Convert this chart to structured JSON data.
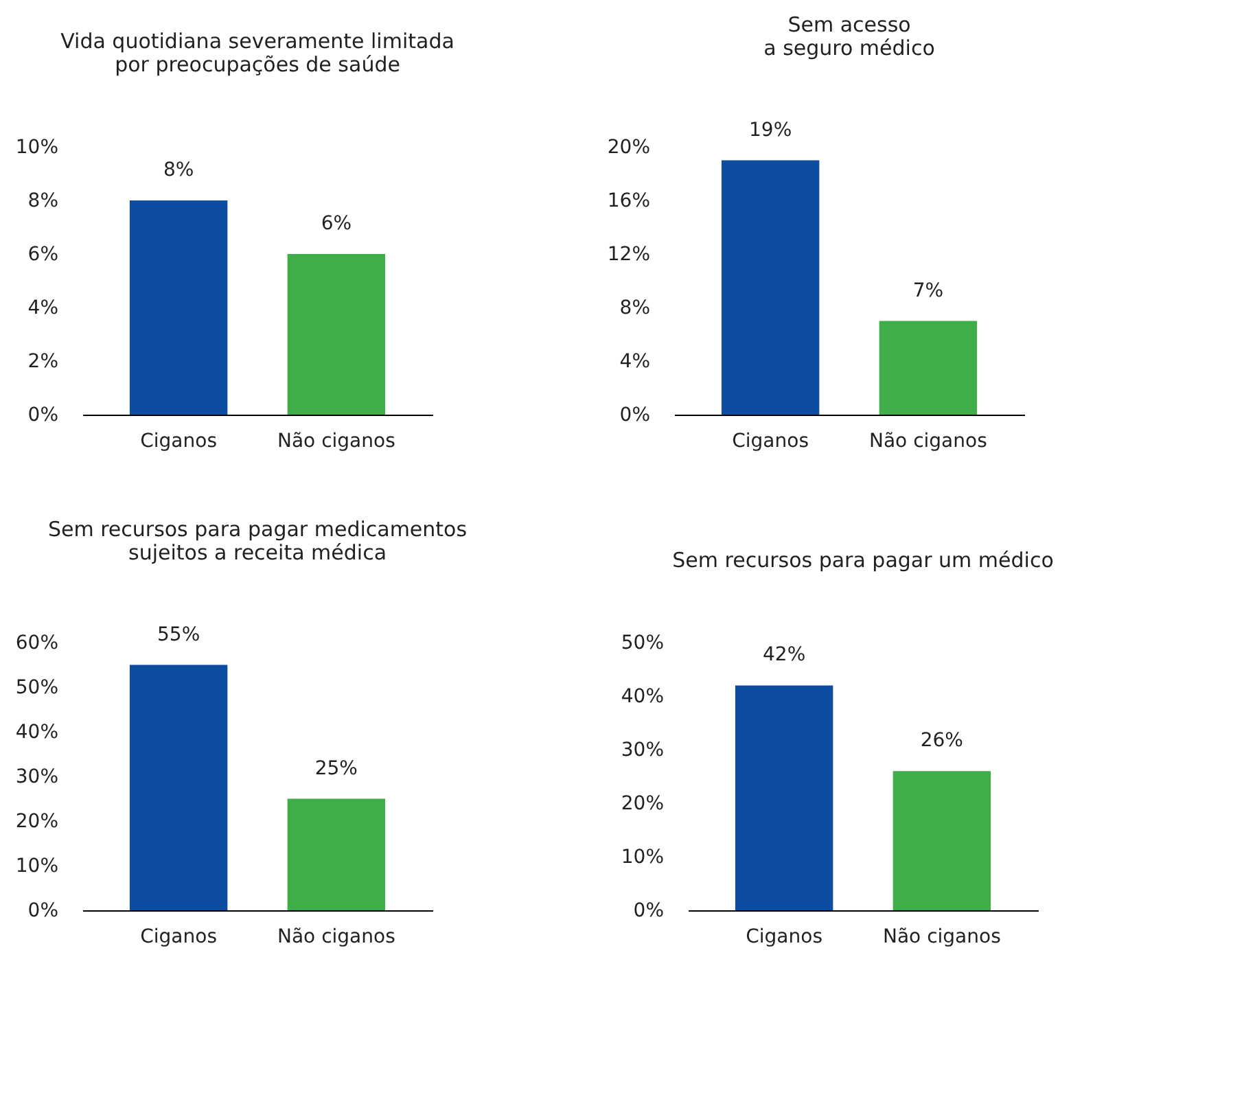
{
  "chart_data": [
    {
      "type": "bar",
      "title": "Vida quotidiana severamente limitada\npor preocupações de saúde",
      "categories": [
        "Ciganos",
        "Não ciganos"
      ],
      "values": [
        8,
        6
      ],
      "colors": [
        "#0d4da1",
        "#3fae49"
      ],
      "value_labels": [
        "8%",
        "6%"
      ],
      "ylim": [
        0,
        10
      ],
      "yticks": [
        {
          "value": 0,
          "label": "0%"
        },
        {
          "value": 2,
          "label": "2%"
        },
        {
          "value": 4,
          "label": "4%"
        },
        {
          "value": 6,
          "label": "6%"
        },
        {
          "value": 8,
          "label": "8%"
        },
        {
          "value": 10,
          "label": "10%"
        }
      ],
      "grid": false
    },
    {
      "type": "bar",
      "title": "Sem acesso\na seguro médico",
      "categories": [
        "Ciganos",
        "Não ciganos"
      ],
      "values": [
        19,
        7
      ],
      "colors": [
        "#0d4da1",
        "#3fae49"
      ],
      "value_labels": [
        "19%",
        "7%"
      ],
      "ylim": [
        0,
        20
      ],
      "yticks": [
        {
          "value": 0,
          "label": "0%"
        },
        {
          "value": 4,
          "label": "4%"
        },
        {
          "value": 8,
          "label": "8%"
        },
        {
          "value": 12,
          "label": "12%"
        },
        {
          "value": 16,
          "label": "16%"
        },
        {
          "value": 20,
          "label": "20%"
        }
      ],
      "grid": false
    },
    {
      "type": "bar",
      "title": "Sem recursos para pagar medicamentos\nsujeitos a receita médica",
      "categories": [
        "Ciganos",
        "Não ciganos"
      ],
      "values": [
        55,
        25
      ],
      "colors": [
        "#0d4da1",
        "#3fae49"
      ],
      "value_labels": [
        "55%",
        "25%"
      ],
      "ylim": [
        0,
        60
      ],
      "yticks": [
        {
          "value": 0,
          "label": "0%"
        },
        {
          "value": 10,
          "label": "10%"
        },
        {
          "value": 20,
          "label": "20%"
        },
        {
          "value": 30,
          "label": "30%"
        },
        {
          "value": 40,
          "label": "40%"
        },
        {
          "value": 50,
          "label": "50%"
        },
        {
          "value": 60,
          "label": "60%"
        }
      ],
      "grid": false
    },
    {
      "type": "bar",
      "title": "Sem recursos para pagar um médico",
      "categories": [
        "Ciganos",
        "Não ciganos"
      ],
      "values": [
        42,
        26
      ],
      "colors": [
        "#0d4da1",
        "#3fae49"
      ],
      "value_labels": [
        "42%",
        "26%"
      ],
      "ylim": [
        0,
        50
      ],
      "yticks": [
        {
          "value": 0,
          "label": "0%"
        },
        {
          "value": 10,
          "label": "10%"
        },
        {
          "value": 20,
          "label": "20%"
        },
        {
          "value": 30,
          "label": "30%"
        },
        {
          "value": 40,
          "label": "40%"
        },
        {
          "value": 50,
          "label": "50%"
        }
      ],
      "grid": false
    }
  ]
}
